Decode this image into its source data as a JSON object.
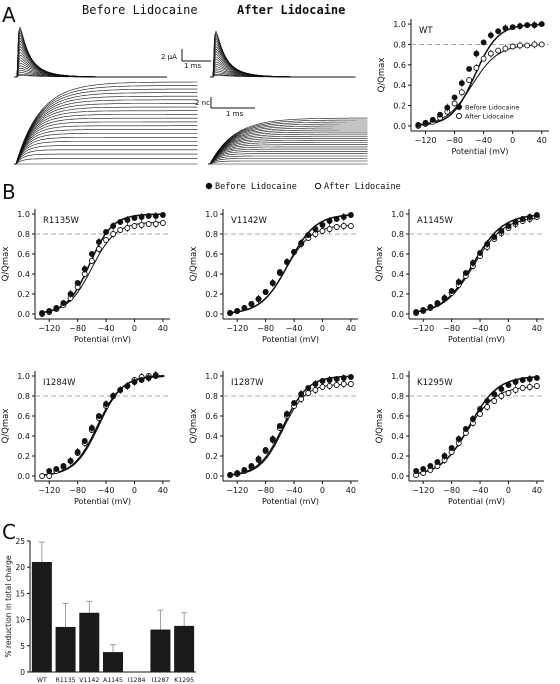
{
  "panels": {
    "A": {
      "letter": "A",
      "title_before": "Before Lidocaine",
      "title_after": "After Lidocaine",
      "scale_current": "2 μA",
      "scale_time_top": "1 ms",
      "scale_charge": "2 nc",
      "scale_time_bottom": "1 ms"
    },
    "B": {
      "letter": "B"
    },
    "C": {
      "letter": "C"
    }
  },
  "legend": {
    "before": "Before Lidocaine",
    "after": "After Lidocaine"
  },
  "colors": {
    "ink": "#111111",
    "reference_line": "#aaaaaa",
    "bar": "#1a1a1a"
  },
  "chart_data": [
    {
      "type": "scatter",
      "id": "wt",
      "label": "WT",
      "xlabel": "Potential (mV)",
      "ylabel": "Q/Qmax",
      "xlim": [
        -140,
        50
      ],
      "ylim": [
        -0.05,
        1.05
      ],
      "xticks": [
        -120,
        -80,
        -40,
        0,
        40
      ],
      "yticks": [
        0.0,
        0.2,
        0.4,
        0.6,
        0.8,
        1.0
      ],
      "reference_y": 0.8,
      "legend_position": "bottom-right",
      "before": {
        "name": "Before Lidocaine",
        "v12": -52,
        "k": 16,
        "x": [
          -130,
          -120,
          -110,
          -100,
          -90,
          -80,
          -70,
          -60,
          -50,
          -40,
          -30,
          -20,
          -10,
          0,
          10,
          20,
          30,
          40
        ],
        "y": [
          0.01,
          0.03,
          0.06,
          0.11,
          0.18,
          0.28,
          0.42,
          0.56,
          0.71,
          0.82,
          0.89,
          0.93,
          0.96,
          0.97,
          0.98,
          0.99,
          0.99,
          1.0
        ]
      },
      "after": {
        "name": "After Lidocaine",
        "v12": -56,
        "k": 18,
        "max": 0.8,
        "x": [
          -130,
          -120,
          -110,
          -100,
          -90,
          -80,
          -70,
          -60,
          -50,
          -40,
          -30,
          -20,
          -10,
          0,
          10,
          20,
          30,
          40
        ],
        "y": [
          0.0,
          0.02,
          0.04,
          0.08,
          0.14,
          0.22,
          0.33,
          0.45,
          0.57,
          0.66,
          0.71,
          0.74,
          0.76,
          0.78,
          0.79,
          0.79,
          0.8,
          0.8
        ]
      }
    },
    {
      "type": "scatter",
      "id": "r1135w",
      "label": "R1135W",
      "xlabel": "Potential (mV)",
      "ylabel": "Q/Qmax",
      "xlim": [
        -140,
        50
      ],
      "ylim": [
        -0.05,
        1.05
      ],
      "xticks": [
        -120,
        -80,
        -40,
        0,
        40
      ],
      "yticks": [
        0.0,
        0.2,
        0.4,
        0.6,
        0.8,
        1.0
      ],
      "reference_y": 0.8,
      "before": {
        "v12": -63,
        "k": 16,
        "x": [
          -130,
          -120,
          -110,
          -100,
          -90,
          -80,
          -70,
          -60,
          -50,
          -40,
          -30,
          -20,
          -10,
          0,
          10,
          20,
          30,
          40
        ],
        "y": [
          0.01,
          0.03,
          0.06,
          0.11,
          0.2,
          0.31,
          0.45,
          0.6,
          0.72,
          0.82,
          0.88,
          0.92,
          0.94,
          0.96,
          0.97,
          0.98,
          0.98,
          0.99
        ]
      },
      "after": {
        "v12": -60,
        "k": 17,
        "max": 0.92,
        "x": [
          -130,
          -120,
          -110,
          -100,
          -90,
          -80,
          -70,
          -60,
          -50,
          -40,
          -30,
          -20,
          -10,
          0,
          10,
          20,
          30,
          40
        ],
        "y": [
          0.0,
          0.02,
          0.05,
          0.09,
          0.16,
          0.27,
          0.4,
          0.53,
          0.65,
          0.74,
          0.8,
          0.84,
          0.86,
          0.88,
          0.89,
          0.9,
          0.9,
          0.91
        ]
      }
    },
    {
      "type": "scatter",
      "id": "v1142w",
      "label": "V1142W",
      "xlabel": "Potential (mV)",
      "ylabel": "Q/Qmax",
      "xlim": [
        -140,
        50
      ],
      "ylim": [
        -0.05,
        1.05
      ],
      "xticks": [
        -120,
        -80,
        -40,
        0,
        40
      ],
      "yticks": [
        0.0,
        0.2,
        0.4,
        0.6,
        0.8,
        1.0
      ],
      "reference_y": 0.8,
      "before": {
        "v12": -48,
        "k": 19,
        "x": [
          -130,
          -120,
          -110,
          -100,
          -90,
          -80,
          -70,
          -60,
          -50,
          -40,
          -30,
          -20,
          -10,
          0,
          10,
          20,
          30,
          40
        ],
        "y": [
          0.01,
          0.03,
          0.06,
          0.1,
          0.15,
          0.22,
          0.31,
          0.41,
          0.52,
          0.62,
          0.71,
          0.79,
          0.85,
          0.89,
          0.93,
          0.95,
          0.97,
          0.99
        ]
      },
      "after": {
        "v12": -52,
        "k": 18,
        "max": 0.89,
        "x": [
          -130,
          -120,
          -110,
          -100,
          -90,
          -80,
          -70,
          -60,
          -50,
          -40,
          -30,
          -20,
          -10,
          0,
          10,
          20,
          30,
          40
        ],
        "y": [
          0.01,
          0.03,
          0.06,
          0.1,
          0.15,
          0.22,
          0.31,
          0.42,
          0.52,
          0.62,
          0.7,
          0.76,
          0.8,
          0.83,
          0.85,
          0.87,
          0.88,
          0.88
        ]
      }
    },
    {
      "type": "scatter",
      "id": "a1145w",
      "label": "A1145W",
      "xlabel": "Potential (mV)",
      "ylabel": "Q/Qmax",
      "xlim": [
        -140,
        50
      ],
      "ylim": [
        -0.05,
        1.05
      ],
      "xticks": [
        -120,
        -80,
        -40,
        0,
        40
      ],
      "yticks": [
        0.0,
        0.2,
        0.4,
        0.6,
        0.8,
        1.0
      ],
      "reference_y": 0.8,
      "before": {
        "v12": -50,
        "k": 21,
        "x": [
          -130,
          -120,
          -110,
          -100,
          -90,
          -80,
          -70,
          -60,
          -50,
          -40,
          -30,
          -20,
          -10,
          0,
          10,
          20,
          30,
          40
        ],
        "y": [
          0.02,
          0.04,
          0.07,
          0.11,
          0.16,
          0.23,
          0.32,
          0.41,
          0.51,
          0.61,
          0.7,
          0.77,
          0.83,
          0.88,
          0.92,
          0.95,
          0.97,
          0.99
        ]
      },
      "after": {
        "v12": -49,
        "k": 21,
        "max": 0.97,
        "x": [
          -130,
          -120,
          -110,
          -100,
          -90,
          -80,
          -70,
          -60,
          -50,
          -40,
          -30,
          -20,
          -10,
          0,
          10,
          20,
          30,
          40
        ],
        "y": [
          0.01,
          0.03,
          0.06,
          0.1,
          0.15,
          0.21,
          0.29,
          0.38,
          0.48,
          0.58,
          0.67,
          0.75,
          0.81,
          0.86,
          0.9,
          0.93,
          0.95,
          0.97
        ]
      }
    },
    {
      "type": "scatter",
      "id": "i1284w",
      "label": "I1284W",
      "xlabel": "Potential (mV)",
      "ylabel": "Q/Qmax",
      "xlim": [
        -140,
        50
      ],
      "ylim": [
        -0.05,
        1.05
      ],
      "xticks": [
        -120,
        -80,
        -40,
        0,
        40
      ],
      "yticks": [
        0.0,
        0.2,
        0.4,
        0.6,
        0.8,
        1.0
      ],
      "reference_y": 0.8,
      "before": {
        "v12": -52,
        "k": 17,
        "x": [
          -120,
          -110,
          -100,
          -90,
          -80,
          -70,
          -60,
          -50,
          -40,
          -30,
          -20,
          -10,
          0,
          10,
          20,
          30
        ],
        "y": [
          0.05,
          0.07,
          0.1,
          0.15,
          0.24,
          0.35,
          0.48,
          0.6,
          0.72,
          0.8,
          0.86,
          0.9,
          0.94,
          0.96,
          0.98,
          1.0
        ]
      },
      "after": {
        "v12": -50,
        "k": 17,
        "max": 1.01,
        "x": [
          -130,
          -120,
          -110,
          -100,
          -90,
          -80,
          -70,
          -60,
          -50,
          -40,
          -30,
          -20,
          -10,
          0,
          10,
          20,
          30
        ],
        "y": [
          0.0,
          0.0,
          0.05,
          0.09,
          0.15,
          0.23,
          0.33,
          0.46,
          0.58,
          0.7,
          0.8,
          0.86,
          0.9,
          0.96,
          0.99,
          1.0,
          1.01
        ]
      }
    },
    {
      "type": "scatter",
      "id": "i1287w",
      "label": "I1287W",
      "xlabel": "Potential (mV)",
      "ylabel": "Q/Qmax",
      "xlim": [
        -140,
        50
      ],
      "ylim": [
        -0.05,
        1.05
      ],
      "xticks": [
        -120,
        -80,
        -40,
        0,
        40
      ],
      "yticks": [
        0.0,
        0.2,
        0.4,
        0.6,
        0.8,
        1.0
      ],
      "reference_y": 0.8,
      "before": {
        "v12": -55,
        "k": 17,
        "x": [
          -130,
          -120,
          -110,
          -100,
          -90,
          -80,
          -70,
          -60,
          -50,
          -40,
          -30,
          -20,
          -10,
          0,
          10,
          20,
          30,
          40
        ],
        "y": [
          0.01,
          0.03,
          0.06,
          0.1,
          0.17,
          0.26,
          0.37,
          0.5,
          0.62,
          0.73,
          0.82,
          0.88,
          0.92,
          0.95,
          0.96,
          0.97,
          0.98,
          0.99
        ]
      },
      "after": {
        "v12": -56,
        "k": 16,
        "max": 0.92,
        "x": [
          -130,
          -120,
          -110,
          -100,
          -90,
          -80,
          -70,
          -60,
          -50,
          -40,
          -30,
          -20,
          -10,
          0,
          10,
          20,
          30,
          40
        ],
        "y": [
          0.01,
          0.02,
          0.05,
          0.09,
          0.16,
          0.25,
          0.36,
          0.48,
          0.6,
          0.7,
          0.77,
          0.83,
          0.86,
          0.89,
          0.9,
          0.91,
          0.92,
          0.92
        ]
      }
    },
    {
      "type": "scatter",
      "id": "k1295w",
      "label": "K1295W",
      "xlabel": "Potential (mV)",
      "ylabel": "Q/Qmax",
      "xlim": [
        -140,
        50
      ],
      "ylim": [
        -0.05,
        1.05
      ],
      "xticks": [
        -120,
        -80,
        -40,
        0,
        40
      ],
      "yticks": [
        0.0,
        0.2,
        0.4,
        0.6,
        0.8,
        1.0
      ],
      "reference_y": 0.8,
      "before": {
        "v12": -55,
        "k": 20,
        "x": [
          -130,
          -120,
          -110,
          -100,
          -90,
          -80,
          -70,
          -60,
          -50,
          -40,
          -30,
          -20,
          -10,
          0,
          10,
          20,
          30,
          40
        ],
        "y": [
          0.05,
          0.07,
          0.1,
          0.14,
          0.2,
          0.28,
          0.37,
          0.47,
          0.57,
          0.67,
          0.75,
          0.82,
          0.87,
          0.91,
          0.94,
          0.96,
          0.97,
          0.98
        ]
      },
      "after": {
        "v12": -58,
        "k": 20,
        "max": 0.9,
        "x": [
          -130,
          -120,
          -110,
          -100,
          -90,
          -80,
          -70,
          -60,
          -50,
          -40,
          -30,
          -20,
          -10,
          0,
          10,
          20,
          30,
          40
        ],
        "y": [
          0.01,
          0.03,
          0.06,
          0.1,
          0.16,
          0.24,
          0.33,
          0.43,
          0.53,
          0.62,
          0.69,
          0.75,
          0.8,
          0.83,
          0.86,
          0.88,
          0.89,
          0.9
        ]
      }
    },
    {
      "type": "bar",
      "id": "reduction",
      "ylabel": "% reduction in total charge",
      "ylim": [
        0,
        25
      ],
      "yticks": [
        0,
        5,
        10,
        15,
        20,
        25
      ],
      "categories": [
        "WT",
        "R1135",
        "V1142",
        "A1145",
        "I1284",
        "I1287",
        "K1295"
      ],
      "values": [
        21.0,
        8.6,
        11.3,
        3.8,
        0.0,
        8.1,
        8.8
      ],
      "errors": [
        3.8,
        4.5,
        2.2,
        1.4,
        0.0,
        3.7,
        2.5
      ]
    }
  ]
}
